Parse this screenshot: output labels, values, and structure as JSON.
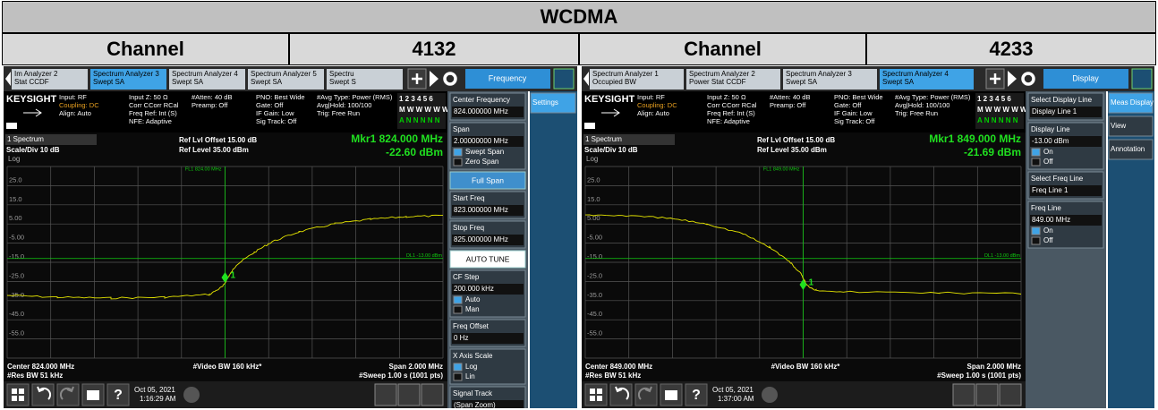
{
  "title": "WCDMA",
  "panels": [
    {
      "channel_label": "Channel",
      "channel": "4132",
      "tabs": [
        {
          "lines": [
            "Im Analyzer 2",
            "Stat CCDF"
          ]
        },
        {
          "lines": [
            "Spectrum Analyzer 3",
            "Swept SA"
          ],
          "active": true
        },
        {
          "lines": [
            "Spectrum Analyzer 4",
            "Swept SA"
          ]
        },
        {
          "lines": [
            "Spectrum Analyzer 5",
            "Swept SA"
          ]
        },
        {
          "lines": [
            "Spectru",
            "Swept S"
          ]
        }
      ],
      "menu_button": "Frequency",
      "brand": "KEYSIGHT",
      "info": [
        [
          "Input: RF",
          "Coupling: DC",
          "Align: Auto"
        ],
        [
          "Input Z: 50 Ω",
          "Corr CCorr RCal",
          "Freq Ref: Int (S)",
          "NFE: Adaptive"
        ],
        [
          "#Atten: 40 dB",
          "Preamp: Off"
        ],
        [
          "PNO: Best Wide",
          "Gate: Off",
          "IF Gain: Low",
          "Sig Track: Off"
        ],
        [
          "#Avg Type: Power (RMS)",
          "Avg|Hold: 100/100",
          "Trig: Free Run"
        ]
      ],
      "trace_rows": [
        "1 2 3 4 5 6",
        "M W W W W W",
        "A N N N N N"
      ],
      "window": "1 Spectrum",
      "scale": "Scale/Div 10 dB",
      "scale_type": "Log",
      "ref_offset": "Ref Lvl Offset 15.00 dB",
      "ref_level": "Ref Level 35.00 dBm",
      "marker_freq": "Mkr1 824.000 MHz",
      "marker_level": "-22.60 dBm",
      "y_labels": [
        "25.0",
        "15.0",
        "5.00",
        "-5.00",
        "-15.0",
        "-25.0",
        "-35.0",
        "-45.0",
        "-55.0"
      ],
      "freq_line": "FL1 824.00 MHz",
      "display_line": "DL1 -13.00 dBm",
      "marker_id": "1",
      "footer": [
        "Center 824.000 MHz",
        "#Video BW 160 kHz*",
        "Span 2.000 MHz",
        "#Res BW 51 kHz",
        "#Sweep 1.00 s (1001 pts)"
      ],
      "date": "Oct 05, 2021",
      "time": "1:16:29 AM",
      "menu": [
        {
          "title": "Center Frequency",
          "value": "824.000000 MHz"
        },
        {
          "title": "Span",
          "value": "2.00000000 MHz",
          "options": [
            "Swept Span",
            "Zero Span"
          ]
        },
        {
          "button": "Full Span"
        },
        {
          "title": "Start Freq",
          "value": "823.000000 MHz"
        },
        {
          "title": "Stop Freq",
          "value": "825.000000 MHz"
        },
        {
          "button": "AUTO TUNE"
        },
        {
          "title": "CF Step",
          "value": "200.000 kHz",
          "options": [
            "Auto",
            "Man"
          ]
        },
        {
          "title": "Freq Offset",
          "value": "0 Hz"
        },
        {
          "title": "X Axis Scale",
          "options": [
            "Log",
            "Lin"
          ]
        },
        {
          "title": "Signal Track",
          "value": "(Span Zoom)"
        }
      ],
      "side": [
        "Settings"
      ]
    },
    {
      "channel_label": "Channel",
      "channel": "4233",
      "tabs": [
        {
          "lines": [
            "Spectrum Analyzer 1",
            "Occupied BW"
          ]
        },
        {
          "lines": [
            "Spectrum Analyzer 2",
            "Power Stat CCDF"
          ]
        },
        {
          "lines": [
            "Spectrum Analyzer 3",
            "Swept SA"
          ]
        },
        {
          "lines": [
            "Spectrum Analyzer 4",
            "Swept SA"
          ],
          "active": true
        }
      ],
      "menu_button": "Display",
      "brand": "KEYSIGHT",
      "info": [
        [
          "Input: RF",
          "Coupling: DC",
          "Align: Auto"
        ],
        [
          "Input Z: 50 Ω",
          "Corr CCorr RCal",
          "Freq Ref: Int (S)",
          "NFE: Adaptive"
        ],
        [
          "#Atten: 40 dB",
          "Preamp: Off"
        ],
        [
          "PNO: Best Wide",
          "Gate: Off",
          "IF Gain: Low",
          "Sig Track: Off"
        ],
        [
          "#Avg Type: Power (RMS)",
          "Avg|Hold: 100/100",
          "Trig: Free Run"
        ]
      ],
      "trace_rows": [
        "1 2 3 4 5 6",
        "M W W W W W",
        "A N N N N N"
      ],
      "window": "1 Spectrum",
      "scale": "Scale/Div 10 dB",
      "scale_type": "Log",
      "ref_offset": "Ref Lvl Offset 15.00 dB",
      "ref_level": "Ref Level 35.00 dBm",
      "marker_freq": "Mkr1 849.000 MHz",
      "marker_level": "-21.69 dBm",
      "y_labels": [
        "25.0",
        "15.0",
        "5.00",
        "-5.00",
        "-15.0",
        "-25.0",
        "-35.0",
        "-45.0",
        "-55.0"
      ],
      "freq_line": "FL1 849.00 MHz",
      "display_line": "DL1 -13.00 dBm",
      "marker_id": "1",
      "footer": [
        "Center 849.000 MHz",
        "#Video BW 160 kHz*",
        "Span 2.000 MHz",
        "#Res BW 51 kHz",
        "#Sweep 1.00 s (1001 pts)"
      ],
      "date": "Oct 05, 2021",
      "time": "1:37:00 AM",
      "menu": [
        {
          "title": "Select Display Line",
          "value": "Display Line 1"
        },
        {
          "title": "Display Line",
          "value": "-13.00 dBm",
          "options": [
            "On",
            "Off"
          ]
        },
        {
          "title": "Select Freq Line",
          "value": "Freq Line 1"
        },
        {
          "title": "Freq Line",
          "value": "849.00 MHz",
          "options": [
            "On",
            "Off"
          ]
        }
      ],
      "side": [
        "Meas Display",
        "View",
        "Annotation"
      ]
    }
  ]
}
